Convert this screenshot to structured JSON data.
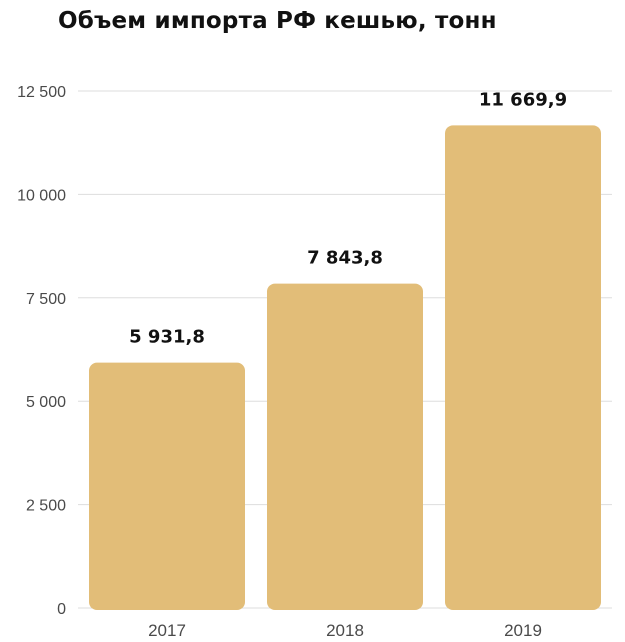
{
  "chart_data": {
    "type": "bar",
    "title": "Объем импорта РФ кешью, тонн",
    "xlabel": "",
    "ylabel": "",
    "categories": [
      "2017",
      "2018",
      "2019"
    ],
    "values": [
      5931.8,
      7843.8,
      11669.9
    ],
    "value_labels": [
      "5 931,8",
      "7 843,8",
      "11 669,9"
    ],
    "ylim": [
      0,
      12500
    ],
    "yticks": [
      0,
      2500,
      5000,
      7500,
      10000,
      12500
    ],
    "ytick_labels": [
      "0",
      "2 500",
      "5 000",
      "7 500",
      "10 000",
      "12 500"
    ],
    "grid": true,
    "legend": "none",
    "bar_color": "#e2bd78",
    "grid_color": "#dddddd"
  }
}
